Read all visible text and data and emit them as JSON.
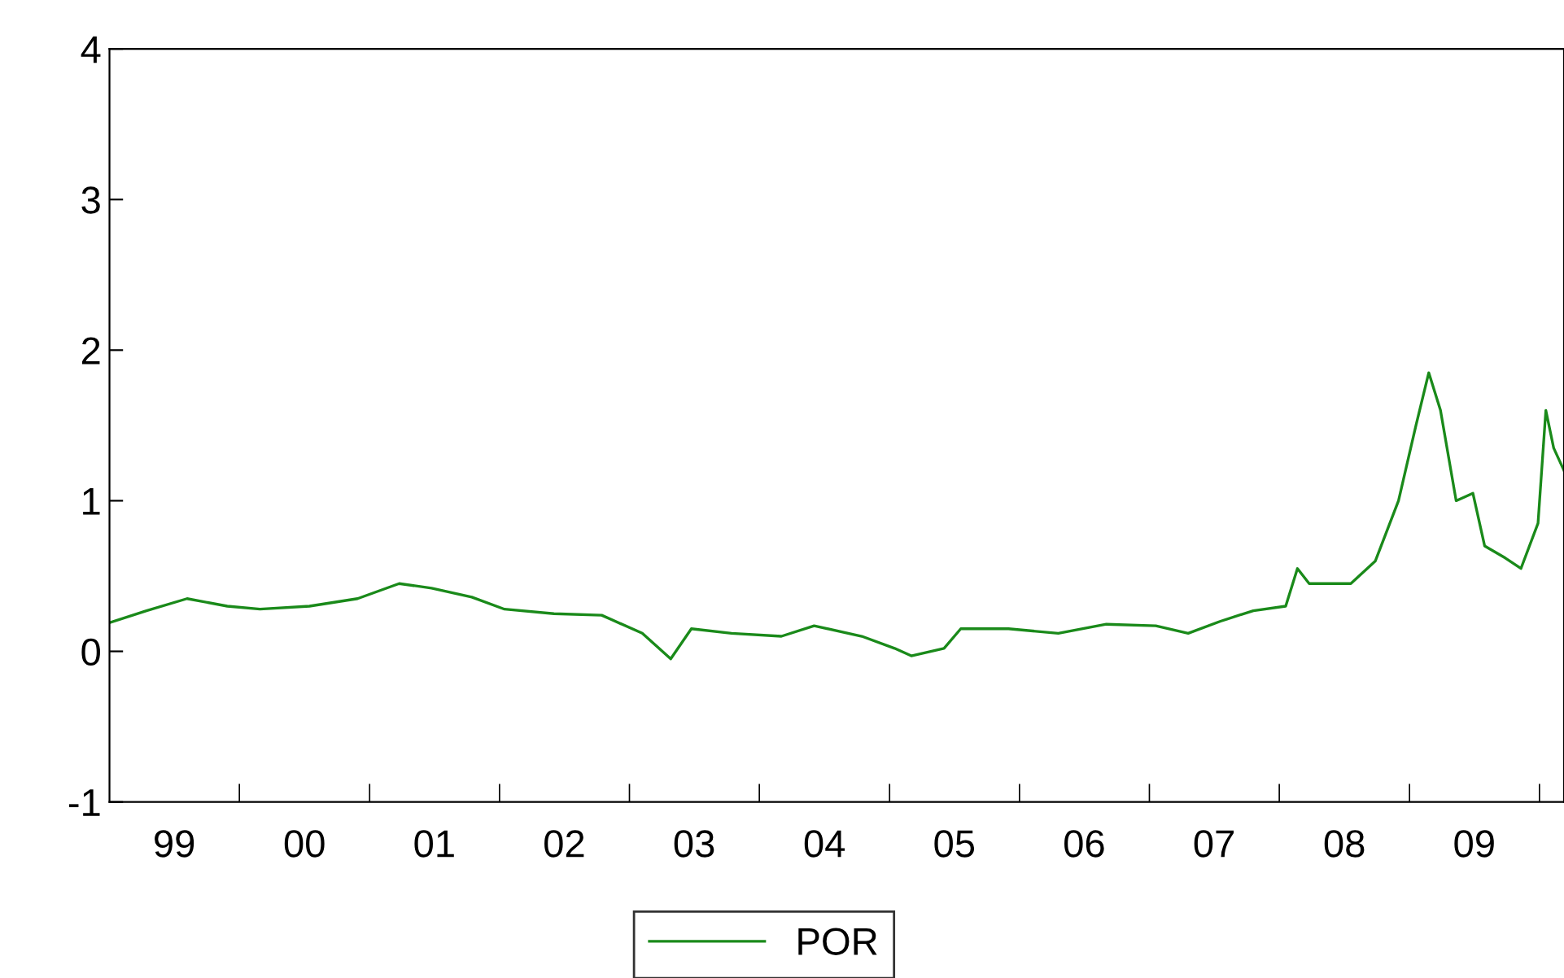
{
  "chart_data": {
    "type": "line",
    "xlim": [
      "1999-01-01",
      "2010-03-11"
    ],
    "ylim": [
      -1,
      4
    ],
    "yticks": [
      -1,
      0,
      1,
      2,
      3,
      4
    ],
    "xticks": [
      {
        "value": "1999-07-02",
        "label": "99"
      },
      {
        "value": "2000-01-01",
        "label": null
      },
      {
        "value": "2000-07-02",
        "label": "00"
      },
      {
        "value": "2001-01-01",
        "label": null
      },
      {
        "value": "2001-07-02",
        "label": "01"
      },
      {
        "value": "2002-01-01",
        "label": null
      },
      {
        "value": "2002-07-02",
        "label": "02"
      },
      {
        "value": "2003-01-01",
        "label": null
      },
      {
        "value": "2003-07-02",
        "label": "03"
      },
      {
        "value": "2004-01-01",
        "label": null
      },
      {
        "value": "2004-07-02",
        "label": "04"
      },
      {
        "value": "2005-01-01",
        "label": null
      },
      {
        "value": "2005-07-02",
        "label": "05"
      },
      {
        "value": "2006-01-01",
        "label": null
      },
      {
        "value": "2006-07-02",
        "label": "06"
      },
      {
        "value": "2007-01-01",
        "label": null
      },
      {
        "value": "2007-07-02",
        "label": "07"
      },
      {
        "value": "2008-01-01",
        "label": null
      },
      {
        "value": "2008-07-02",
        "label": "08"
      },
      {
        "value": "2009-01-01",
        "label": null
      },
      {
        "value": "2009-07-02",
        "label": "09"
      },
      {
        "value": "2010-01-01",
        "label": null
      }
    ],
    "grid": false,
    "legend": "bottom",
    "marker": "none",
    "line_style": "solid",
    "series": [
      {
        "name": "POR",
        "color": "#1a8a1a",
        "x": [
          "1999-01-01",
          "1999-04-15",
          "1999-08-07",
          "1999-11-28",
          "2000-02-28",
          "2000-07-16",
          "2000-11-28",
          "2001-03-25",
          "2001-06-24",
          "2001-10-15",
          "2002-01-15",
          "2002-06-03",
          "2002-10-15",
          "2003-02-06",
          "2003-04-27",
          "2003-06-24",
          "2003-10-15",
          "2004-03-03",
          "2004-06-03",
          "2004-10-15",
          "2005-01-15",
          "2005-03-03",
          "2005-06-03",
          "2005-07-20",
          "2005-12-01",
          "2006-04-20",
          "2006-09-02",
          "2007-01-19",
          "2007-04-20",
          "2007-07-20",
          "2007-10-20",
          "2008-01-19",
          "2008-02-21",
          "2008-03-25",
          "2008-07-20",
          "2008-09-27",
          "2008-12-01",
          "2009-01-19",
          "2009-02-24",
          "2009-03-29",
          "2009-05-12",
          "2009-06-28",
          "2009-07-31",
          "2009-09-27",
          "2009-11-10",
          "2009-12-28",
          "2010-01-19",
          "2010-02-10",
          "2010-03-11"
        ],
        "values": [
          0.19,
          0.27,
          0.35,
          0.3,
          0.28,
          0.3,
          0.35,
          0.45,
          0.42,
          0.36,
          0.28,
          0.25,
          0.24,
          0.12,
          -0.05,
          0.15,
          0.12,
          0.1,
          0.17,
          0.1,
          0.02,
          -0.03,
          0.02,
          0.15,
          0.15,
          0.12,
          0.18,
          0.17,
          0.12,
          0.2,
          0.27,
          0.3,
          0.55,
          0.45,
          0.45,
          0.6,
          1.0,
          1.5,
          1.85,
          1.6,
          1.0,
          1.05,
          0.7,
          0.62,
          0.55,
          0.85,
          1.6,
          1.35,
          1.2
        ]
      }
    ]
  }
}
